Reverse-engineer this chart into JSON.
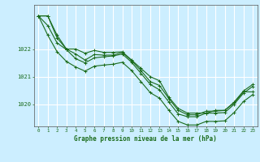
{
  "title": "Graphe pression niveau de la mer (hPa)",
  "background_color": "#cceeff",
  "grid_color": "#ffffff",
  "line_color": "#1a6b1a",
  "x_labels": [
    "0",
    "1",
    "2",
    "3",
    "4",
    "5",
    "6",
    "7",
    "8",
    "9",
    "10",
    "11",
    "12",
    "13",
    "14",
    "15",
    "16",
    "17",
    "18",
    "19",
    "20",
    "21",
    "22",
    "23"
  ],
  "y_ticks": [
    1020,
    1021,
    1022
  ],
  "y_lim": [
    1019.2,
    1023.6
  ],
  "x_lim": [
    -0.5,
    23.5
  ],
  "series": [
    [
      1023.2,
      1023.2,
      1022.5,
      1022.0,
      1022.0,
      1021.85,
      1021.95,
      1021.88,
      1021.88,
      1021.9,
      1021.6,
      1021.3,
      1021.0,
      1020.85,
      1020.25,
      1019.85,
      1019.68,
      1019.68,
      1019.68,
      1019.78,
      1019.78,
      1020.05,
      1020.45,
      1020.45
    ],
    [
      1023.2,
      1023.2,
      1022.4,
      1022.0,
      1021.82,
      1021.6,
      1021.8,
      1021.78,
      1021.78,
      1021.88,
      1021.58,
      1021.22,
      1020.82,
      1020.68,
      1020.2,
      1019.78,
      1019.62,
      1019.62,
      1019.75,
      1019.75,
      1019.78,
      1020.08,
      1020.48,
      1020.72
    ],
    [
      1023.2,
      1022.85,
      1022.22,
      1021.98,
      1021.65,
      1021.5,
      1021.68,
      1021.72,
      1021.75,
      1021.82,
      1021.52,
      1021.12,
      1020.72,
      1020.52,
      1020.08,
      1019.65,
      1019.55,
      1019.55,
      1019.68,
      1019.68,
      1019.7,
      1020.0,
      1020.4,
      1020.65
    ],
    [
      1023.2,
      1022.5,
      1021.9,
      1021.55,
      1021.35,
      1021.2,
      1021.38,
      1021.42,
      1021.45,
      1021.52,
      1021.22,
      1020.82,
      1020.42,
      1020.22,
      1019.78,
      1019.38,
      1019.25,
      1019.25,
      1019.38,
      1019.38,
      1019.4,
      1019.7,
      1020.1,
      1020.35
    ]
  ]
}
